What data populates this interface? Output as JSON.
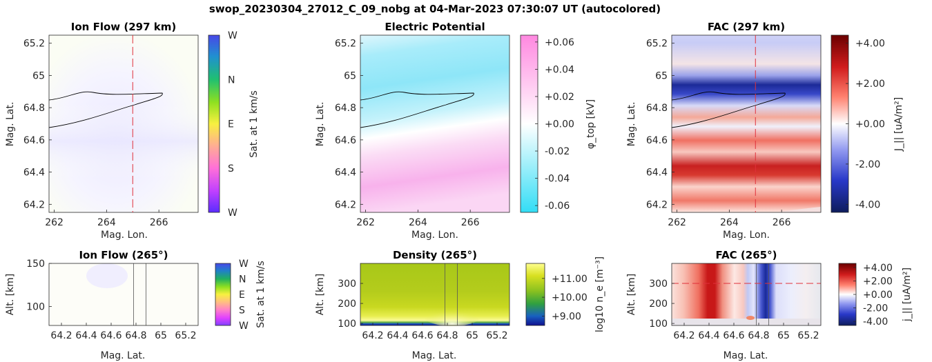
{
  "figure_title": "swop_20230304_27012_C_09_nobg at 04-Mar-2023 07:30:07 UT (autocolored)",
  "colors": {
    "cut_line": "#e0303a",
    "trace": "#000000",
    "axis": "#262626"
  },
  "chart_data": [
    {
      "id": "ionflow_top",
      "type": "heatmap",
      "title": "Ion Flow (297 km)",
      "xlabel": "Mag. Lon.",
      "ylabel": "Mag. Lat.",
      "xlim": [
        261.8,
        267.5
      ],
      "ylim": [
        64.15,
        65.25
      ],
      "xticks": [
        262,
        264,
        266
      ],
      "xticklabels": [
        "262",
        "264",
        "266"
      ],
      "yticks": [
        64.2,
        64.4,
        64.6,
        64.8,
        65,
        65.2
      ],
      "yticklabels": [
        "64.2",
        "64.4",
        "64.6",
        "64.8",
        "65",
        "65.2"
      ],
      "vline_x": 265,
      "colorbar": {
        "label": "Sat. at 1 km/s",
        "ticks": [
          "W",
          "N",
          "E",
          "S",
          "W"
        ],
        "gradient": [
          "#6a2aff",
          "#e040ff",
          "#ff80c0",
          "#ffff40",
          "#b0e020",
          "#30c060",
          "#2080d0",
          "#4a4ae8"
        ]
      }
    },
    {
      "id": "potential",
      "type": "heatmap",
      "title": "Electric Potential",
      "xlabel": "Mag. Lon.",
      "ylabel": "Mag. Lat.",
      "xlim": [
        261.8,
        267.5
      ],
      "ylim": [
        64.15,
        65.25
      ],
      "xticks": [
        262,
        264,
        266
      ],
      "xticklabels": [
        "262",
        "264",
        "266"
      ],
      "yticks": [
        64.2,
        64.4,
        64.6,
        64.8,
        65,
        65.2
      ],
      "yticklabels": [
        "64.2",
        "64.4",
        "64.6",
        "64.8",
        "65",
        "65.2"
      ],
      "colorbar": {
        "label": "φ_top [kV]",
        "range": [
          -0.065,
          0.065
        ],
        "ticks": [
          0.06,
          0.04,
          0.02,
          0.0,
          -0.02,
          -0.04,
          -0.06
        ],
        "ticklabels": [
          "+0.06",
          "+0.04",
          "+0.02",
          "+0.00",
          "-0.02",
          "-0.04",
          "-0.06"
        ],
        "gradient": [
          "#ff88e0",
          "#ffffff",
          "#33ddf5"
        ]
      }
    },
    {
      "id": "fac_top",
      "type": "heatmap",
      "title": "FAC (297 km)",
      "xlabel": "Mag. Lon.",
      "ylabel": "Mag. Lat.",
      "xlim": [
        261.8,
        267.5
      ],
      "ylim": [
        64.15,
        65.25
      ],
      "xticks": [
        262,
        264,
        266
      ],
      "xticklabels": [
        "262",
        "264",
        "266"
      ],
      "yticks": [
        64.2,
        64.4,
        64.6,
        64.8,
        65,
        65.2
      ],
      "yticklabels": [
        "64.2",
        "64.4",
        "64.6",
        "64.8",
        "65",
        "65.2"
      ],
      "vline_x": 265,
      "colorbar": {
        "label": "J_|| [uA/m²]",
        "range": [
          -4.4,
          4.4
        ],
        "ticks": [
          4,
          2,
          0,
          -2,
          -4
        ],
        "ticklabels": [
          "+4.00",
          "+2.00",
          "+0.00",
          "-2.00",
          "-4.00"
        ],
        "gradient": [
          "#680000",
          "#d01818",
          "#ff8070",
          "#ffffff",
          "#9098f0",
          "#2838c8",
          "#101e60"
        ]
      }
    },
    {
      "id": "ionflow_bottom",
      "type": "heatmap",
      "title": "Ion Flow (265°)",
      "xlabel": "Mag. Lat.",
      "ylabel": "Alt. [km]",
      "xlim": [
        64.1,
        65.3
      ],
      "ylim": [
        78,
        150
      ],
      "xticks": [
        64.2,
        64.4,
        64.6,
        64.8,
        65,
        65.2
      ],
      "xticklabels": [
        "64.2",
        "64.4",
        "64.6",
        "64.8",
        "65",
        "65.2"
      ],
      "yticks": [
        100,
        150
      ],
      "yticklabels": [
        "100",
        "150"
      ],
      "vlines_x": [
        64.78,
        64.88
      ],
      "colorbar": {
        "label": "Sat. at 1 km/s",
        "ticks": [
          "W",
          "N",
          "E",
          "S",
          "W"
        ],
        "gradient": [
          "#4a4ae8",
          "#2080d0",
          "#30c060",
          "#b0e020",
          "#ffff40",
          "#ff80c0",
          "#e040ff",
          "#6a2aff"
        ]
      }
    },
    {
      "id": "density",
      "type": "heatmap",
      "title": "Density (265°)",
      "xlabel": "Mag. Lat.",
      "ylabel": "Alt. [km]",
      "xlim": [
        64.1,
        65.3
      ],
      "ylim": [
        90,
        400
      ],
      "xticks": [
        64.2,
        64.4,
        64.6,
        64.8,
        65,
        65.2
      ],
      "xticklabels": [
        "64.2",
        "64.4",
        "64.6",
        "64.8",
        "65",
        "65.2"
      ],
      "yticks": [
        100,
        200,
        300
      ],
      "yticklabels": [
        "100",
        "200",
        "300"
      ],
      "vlines_x": [
        64.78,
        64.88
      ],
      "colorbar": {
        "label": "log10 n_e [m⁻³]",
        "range": [
          8.5,
          11.8
        ],
        "ticks": [
          11,
          10,
          9
        ],
        "ticklabels": [
          "+11.00",
          "+10.00",
          "+9.00"
        ],
        "gradient": [
          "#ffff90",
          "#d8e020",
          "#88c020",
          "#30a040",
          "#1860c0",
          "#101090"
        ]
      }
    },
    {
      "id": "fac_bottom",
      "type": "heatmap",
      "title": "FAC (265°)",
      "xlabel": "Mag. Lat.",
      "ylabel": "Alt. [km]",
      "xlim": [
        64.1,
        65.3
      ],
      "ylim": [
        90,
        400
      ],
      "xticks": [
        64.2,
        64.4,
        64.6,
        64.8,
        65,
        65.2
      ],
      "xticklabels": [
        "64.2",
        "64.4",
        "64.6",
        "64.8",
        "65",
        "65.2"
      ],
      "yticks": [
        100,
        200,
        300
      ],
      "yticklabels": [
        "100",
        "200",
        "300"
      ],
      "vlines_x": [
        64.78,
        64.88
      ],
      "hline_y": 300,
      "colorbar": {
        "label": "j_|| [uA/m²]",
        "range": [
          -4.6,
          4.6
        ],
        "ticks": [
          4,
          2,
          0,
          -2,
          -4
        ],
        "ticklabels": [
          "+4.00",
          "+2.00",
          "+0.00",
          "-2.00",
          "-4.00"
        ],
        "gradient": [
          "#800000",
          "#d82020",
          "#ff9080",
          "#ffffff",
          "#9aa8f0",
          "#3040d0",
          "#102080"
        ]
      }
    }
  ]
}
